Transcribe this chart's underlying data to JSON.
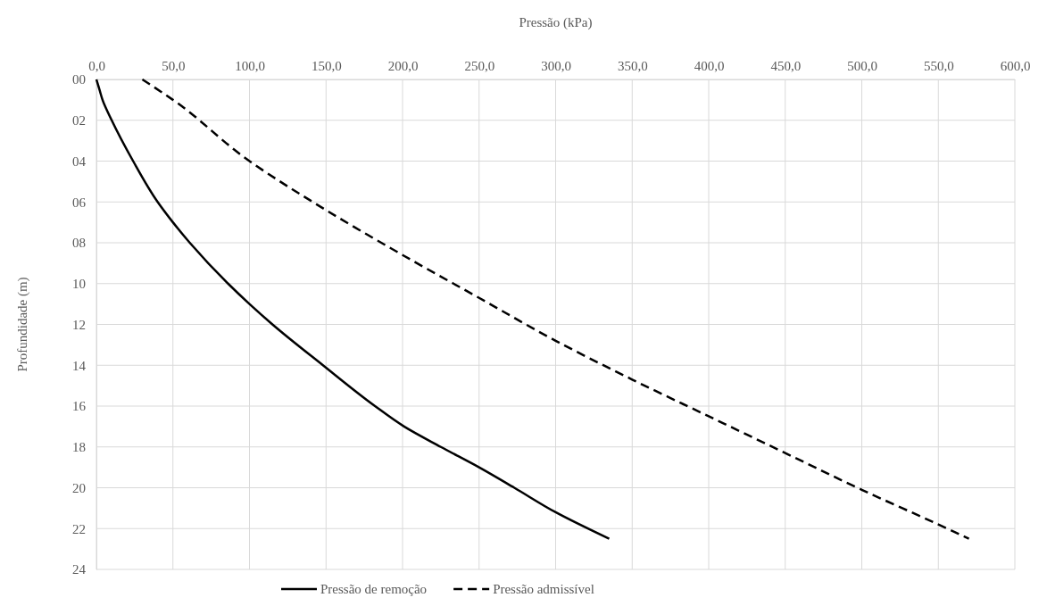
{
  "chart_data": {
    "type": "line",
    "xlabel": "Pressão (kPa)",
    "ylabel": "Profundidade (m)",
    "xlim": [
      0,
      600
    ],
    "xticks": [
      {
        "value": 0,
        "label": "0,0"
      },
      {
        "value": 50,
        "label": "50,0"
      },
      {
        "value": 100,
        "label": "100,0"
      },
      {
        "value": 150,
        "label": "150,0"
      },
      {
        "value": 200,
        "label": "200,0"
      },
      {
        "value": 250,
        "label": "250,0"
      },
      {
        "value": 300,
        "label": "300,0"
      },
      {
        "value": 350,
        "label": "350,0"
      },
      {
        "value": 400,
        "label": "400,0"
      },
      {
        "value": 450,
        "label": "450,0"
      },
      {
        "value": 500,
        "label": "500,0"
      },
      {
        "value": 550,
        "label": "550,0"
      },
      {
        "value": 600,
        "label": "600,0"
      }
    ],
    "ylim": [
      24,
      0
    ],
    "yticks": [
      {
        "value": 0,
        "label": "00"
      },
      {
        "value": 2,
        "label": "02"
      },
      {
        "value": 4,
        "label": "04"
      },
      {
        "value": 6,
        "label": "06"
      },
      {
        "value": 8,
        "label": "08"
      },
      {
        "value": 10,
        "label": "10"
      },
      {
        "value": 12,
        "label": "12"
      },
      {
        "value": 14,
        "label": "14"
      },
      {
        "value": 16,
        "label": "16"
      },
      {
        "value": 18,
        "label": "18"
      },
      {
        "value": 20,
        "label": "20"
      },
      {
        "value": 22,
        "label": "22"
      },
      {
        "value": 24,
        "label": "24"
      }
    ],
    "grid": true,
    "legend": "bottom",
    "marker": "none",
    "series": [
      {
        "name": "Pressão de remoção",
        "color": "#000000",
        "line_style": "solid",
        "x": [
          0,
          2,
          4,
          10,
          24,
          40,
          50,
          61,
          86,
          100,
          115,
          148,
          182,
          201,
          225,
          250,
          273,
          300,
          335
        ],
        "values": [
          0,
          0.5,
          1,
          2,
          4,
          6,
          7,
          8,
          10,
          11,
          12,
          14,
          16,
          17,
          18,
          19,
          20,
          21.2,
          22.5
        ]
      },
      {
        "name": "Pressão admissível",
        "color": "#000000",
        "line_style": "dashed",
        "x": [
          30,
          50,
          100,
          150,
          200,
          250,
          300,
          350,
          400,
          450,
          500,
          550,
          570
        ],
        "values": [
          0,
          1,
          4,
          6.4,
          8.6,
          10.7,
          12.8,
          14.7,
          16.5,
          18.3,
          20.1,
          21.8,
          22.5
        ]
      }
    ]
  }
}
